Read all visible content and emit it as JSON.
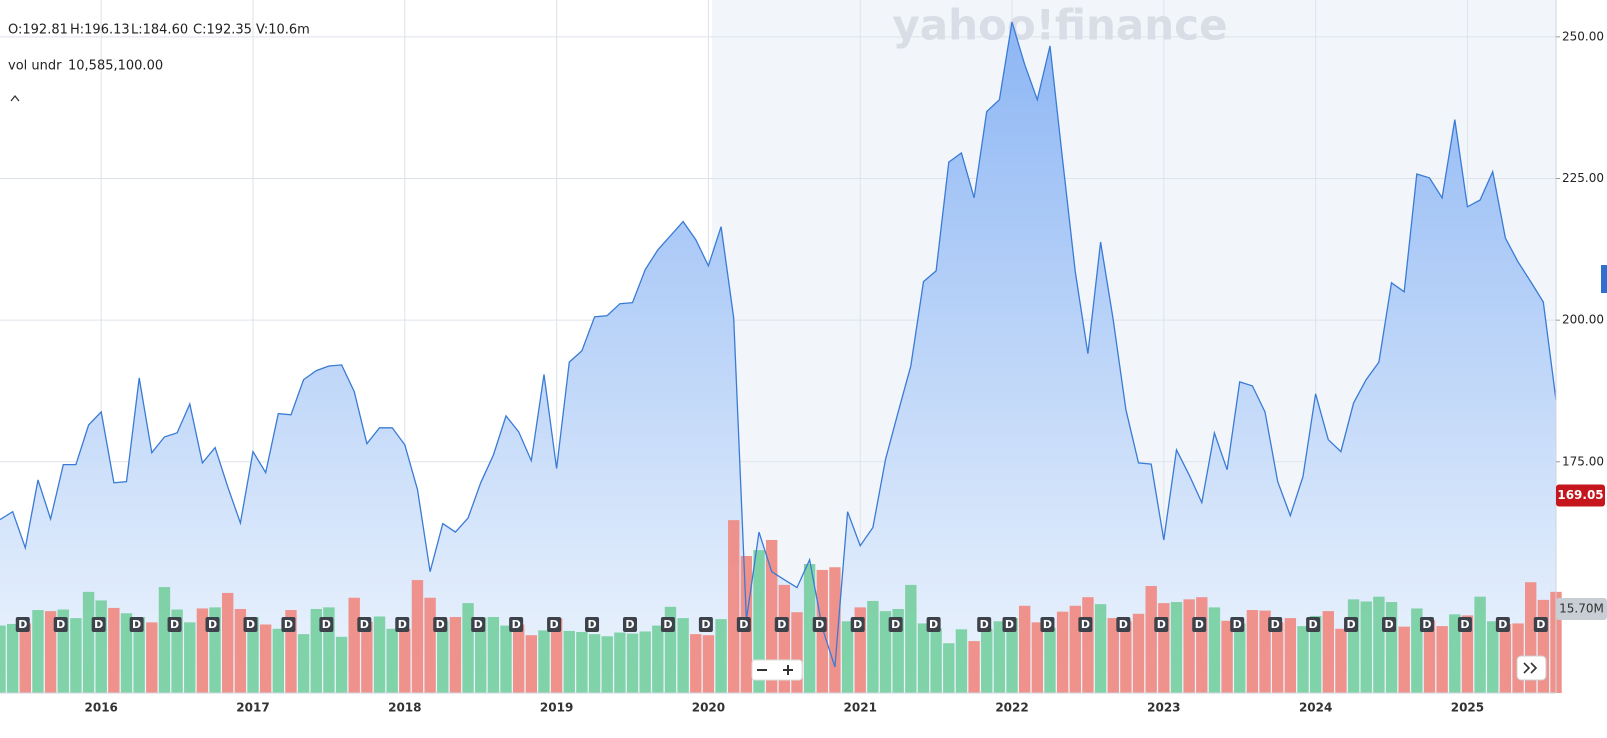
{
  "header": {
    "ohlc": [
      "O:192.81",
      "H:196.13",
      "L:184.60",
      "C:192.35",
      "V:10.6m"
    ],
    "vol_label": "vol undr",
    "vol_value": "10,585,100.00",
    "watermark": "yahoo!finance"
  },
  "chart_data": {
    "type": "area",
    "categories": [
      null,
      null,
      null,
      null,
      null,
      null,
      null,
      null,
      "2016",
      null,
      null,
      null,
      null,
      null,
      null,
      null,
      null,
      null,
      null,
      null,
      "2017",
      null,
      null,
      null,
      null,
      null,
      null,
      null,
      null,
      null,
      null,
      null,
      "2018",
      null,
      null,
      null,
      null,
      null,
      null,
      null,
      null,
      null,
      null,
      null,
      "2019",
      null,
      null,
      null,
      null,
      null,
      null,
      null,
      null,
      null,
      null,
      null,
      "2020",
      null,
      null,
      null,
      null,
      null,
      null,
      null,
      null,
      null,
      null,
      null,
      "2021",
      null,
      null,
      null,
      null,
      null,
      null,
      null,
      null,
      null,
      null,
      null,
      "2022",
      null,
      null,
      null,
      null,
      null,
      null,
      null,
      null,
      null,
      null,
      null,
      "2023",
      null,
      null,
      null,
      null,
      null,
      null,
      null,
      null,
      null,
      null,
      null,
      "2024",
      null,
      null,
      null,
      null,
      null,
      null,
      null,
      null,
      null,
      null,
      null,
      "2025",
      null,
      null,
      null,
      null,
      null,
      null,
      null
    ],
    "values": [
      164.8,
      166.2,
      159.8,
      171.8,
      164.9,
      174.5,
      174.5,
      181.5,
      183.8,
      171.3,
      171.5,
      189.8,
      176.6,
      179.4,
      180.1,
      185.2,
      174.8,
      177.5,
      170.6,
      164.2,
      176.8,
      173.1,
      183.5,
      183.3,
      189.5,
      191.1,
      191.9,
      192.1,
      187.4,
      178.2,
      181.0,
      181.0,
      178.0,
      170.1,
      155.6,
      164.1,
      162.6,
      165.1,
      171.3,
      176.2,
      183.1,
      180.3,
      175.2,
      190.4,
      173.8,
      192.6,
      194.6,
      200.6,
      200.8,
      202.9,
      203.1,
      208.9,
      212.4,
      214.9,
      217.4,
      214.2,
      209.6,
      216.5,
      200.4,
      147.1,
      162.6,
      155.6,
      154.2,
      152.8,
      157.7,
      145.7,
      138.8,
      166.2,
      160.2,
      163.4,
      175.4,
      183.8,
      191.9,
      206.8,
      208.7,
      227.9,
      229.5,
      221.6,
      236.8,
      238.9,
      252.6,
      245.1,
      238.9,
      248.4,
      228.3,
      208.5,
      194.1,
      213.8,
      200.1,
      184.2,
      174.8,
      174.6,
      161.2,
      177.1,
      172.7,
      167.8,
      180.1,
      173.6,
      189.1,
      188.4,
      183.8,
      171.5,
      165.5,
      172.4,
      187.0,
      178.9,
      176.8,
      185.4,
      189.5,
      192.6,
      206.6,
      205.0,
      225.8,
      225.1,
      221.6,
      235.4,
      220.0,
      221.2,
      226.2,
      214.5,
      210.3,
      206.8,
      203.2,
      185.9
    ],
    "volume_values": [
      12.6,
      12.9,
      13.0,
      15.5,
      15.3,
      15.6,
      14.0,
      18.9,
      17.3,
      15.9,
      14.9,
      14.2,
      13.2,
      19.8,
      15.6,
      13.2,
      15.8,
      16.0,
      18.7,
      15.7,
      14.2,
      12.8,
      12.0,
      15.5,
      11.0,
      15.7,
      16.0,
      10.5,
      17.8,
      13.3,
      14.3,
      12.0,
      12.0,
      21.1,
      17.8,
      13.5,
      14.2,
      16.8,
      14.1,
      14.2,
      12.6,
      12.8,
      10.8,
      11.7,
      14.0,
      11.6,
      11.4,
      11.0,
      10.6,
      11.3,
      11.1,
      11.5,
      12.6,
      16.1,
      14.0,
      11.0,
      10.8,
      13.8,
      32.3,
      25.6,
      26.7,
      28.6,
      20.2,
      15.1,
      24.1,
      23.0,
      23.5,
      13.4,
      16.0,
      17.2,
      15.3,
      15.7,
      20.2,
      13.0,
      12.1,
      9.3,
      11.9,
      9.7,
      12.0,
      13.4,
      14.0,
      16.3,
      13.2,
      12.2,
      15.2,
      16.3,
      17.9,
      16.6,
      14.0,
      13.4,
      14.8,
      20.0,
      16.8,
      17.0,
      17.5,
      17.9,
      16.0,
      13.5,
      13.0,
      15.5,
      15.4,
      13.2,
      14.0,
      12.5,
      14.4,
      15.3,
      12.0,
      17.5,
      17.1,
      18.0,
      17.0,
      12.4,
      15.8,
      13.6,
      12.5,
      14.7,
      14.5,
      18.0,
      13.4,
      12.9,
      13.0,
      20.7,
      17.4,
      18.9
    ],
    "color": "#3a7bd5",
    "area_top_color": "#8db6f4",
    "area_bottom_color": "#eef5fd",
    "up_color": "#7ad0a3",
    "down_color": "#ef8c86",
    "ylim": [
      134.2,
      256.5
    ],
    "yticks": [
      {
        "value": 175,
        "label": "175.00"
      },
      {
        "value": 200,
        "label": "200.00"
      },
      {
        "value": 225,
        "label": "225.00"
      },
      {
        "value": 250,
        "label": "250.00"
      }
    ],
    "y2lim": [
      0,
      129.5
    ],
    "y2ticks": [
      {
        "value": 15.7,
        "label": "15.70M"
      }
    ],
    "last_price": 169.05,
    "dividends": {
      "label": "D",
      "at": [
        2,
        5,
        8,
        11,
        14,
        17,
        20,
        23,
        26,
        29,
        32,
        35,
        38,
        41,
        44,
        47,
        50,
        53,
        56,
        59,
        62,
        65,
        68,
        71,
        74,
        78,
        80,
        83,
        86,
        89,
        92,
        95,
        98,
        101,
        104,
        107,
        110,
        113,
        116,
        119,
        122
      ]
    },
    "grid": true
  }
}
